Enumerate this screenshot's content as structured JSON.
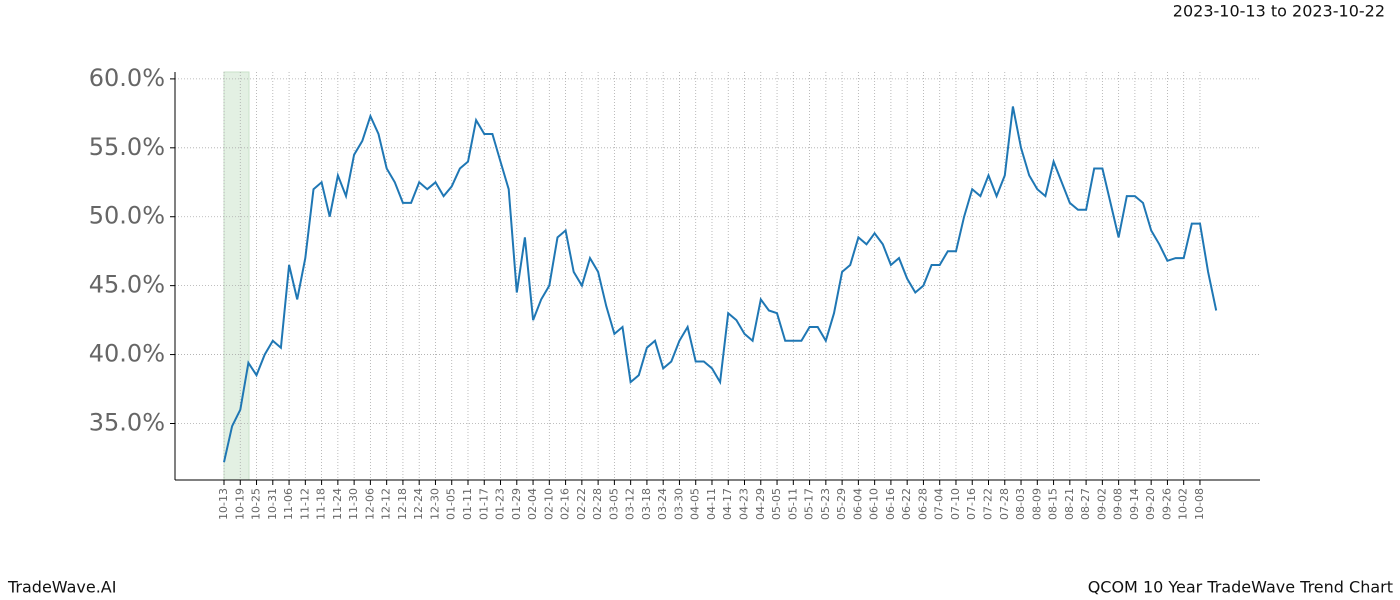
{
  "chart_data": {
    "type": "line",
    "title": "2023-10-13 to 2023-10-22",
    "footer_left": "TradeWave.AI",
    "footer_right": "QCOM 10 Year TradeWave Trend Chart",
    "categories": [
      "10-13",
      null,
      "10-19",
      null,
      "10-25",
      null,
      "10-31",
      null,
      "11-06",
      null,
      "11-12",
      null,
      "11-18",
      null,
      "11-24",
      null,
      "11-30",
      null,
      "12-06",
      null,
      "12-12",
      null,
      "12-18",
      null,
      "12-24",
      null,
      "12-30",
      null,
      "01-05",
      null,
      "01-11",
      null,
      "01-17",
      null,
      "01-23",
      null,
      "01-29",
      null,
      "02-04",
      null,
      "02-10",
      null,
      "02-16",
      null,
      "02-22",
      null,
      "02-28",
      null,
      "03-05",
      null,
      "03-12",
      null,
      "03-18",
      null,
      "03-24",
      null,
      "03-30",
      null,
      "04-05",
      null,
      "04-11",
      null,
      "04-17",
      null,
      "04-23",
      null,
      "04-29",
      null,
      "05-05",
      null,
      "05-11",
      null,
      "05-17",
      null,
      "05-23",
      null,
      "05-29",
      null,
      "06-04",
      null,
      "06-10",
      null,
      "06-16",
      null,
      "06-22",
      null,
      "06-28",
      null,
      "07-04",
      null,
      "07-10",
      null,
      "07-16",
      null,
      "07-22",
      null,
      "07-28",
      null,
      "08-03",
      null,
      "08-09",
      null,
      "08-15",
      null,
      "08-21",
      null,
      "08-27",
      null,
      "09-02",
      null,
      "09-08",
      null,
      "09-14",
      null,
      "09-20",
      null,
      "09-26",
      null,
      "10-02",
      null,
      "10-08",
      null,
      null
    ],
    "series": [
      {
        "name": "QCOM",
        "color": "#1f77b4",
        "values": [
          32.2,
          34.8,
          36.0,
          39.4,
          38.5,
          40.0,
          41.0,
          40.5,
          46.5,
          44.0,
          47.0,
          52.0,
          52.5,
          50.0,
          53.0,
          51.5,
          54.5,
          55.5,
          57.3,
          56.0,
          53.5,
          52.5,
          51.0,
          51.0,
          52.5,
          52.0,
          52.5,
          51.5,
          52.2,
          53.5,
          54.0,
          57.0,
          56.0,
          56.0,
          54.0,
          52.0,
          44.5,
          48.5,
          42.5,
          44.0,
          45.0,
          48.5,
          49.0,
          46.0,
          45.0,
          47.0,
          46.0,
          43.5,
          41.5,
          42.0,
          38.0,
          38.5,
          40.5,
          41.0,
          39.0,
          39.5,
          41.0,
          42.0,
          39.5,
          39.5,
          39.0,
          38.0,
          43.0,
          42.5,
          41.5,
          41.0,
          44.0,
          43.2,
          43.0,
          41.0,
          41.0,
          41.0,
          42.0,
          42.0,
          41.0,
          43.0,
          46.0,
          46.5,
          48.5,
          48.0,
          48.8,
          48.0,
          46.5,
          47.0,
          45.5,
          44.5,
          45.0,
          46.5,
          46.5,
          47.5,
          47.5,
          50.0,
          52.0,
          51.5,
          53.0,
          51.5,
          53.0,
          58.0,
          55.0,
          53.0,
          52.0,
          51.5,
          54.0,
          52.5,
          51.0,
          50.5,
          50.5,
          53.5,
          53.5,
          51.0,
          48.5,
          51.5,
          51.5,
          51.0,
          49.0,
          48.0,
          46.8,
          47.0,
          47.0,
          49.5,
          49.5,
          46.0,
          43.2
        ]
      }
    ],
    "ylim": [
      30.9,
      60.5
    ],
    "yticks": [
      {
        "value": 35,
        "label": "35.0%"
      },
      {
        "value": 40,
        "label": "40.0%"
      },
      {
        "value": 45,
        "label": "45.0%"
      },
      {
        "value": 50,
        "label": "50.0%"
      },
      {
        "value": 55,
        "label": "55.0%"
      },
      {
        "value": 60,
        "label": "60.0%"
      }
    ],
    "grid": true
  }
}
